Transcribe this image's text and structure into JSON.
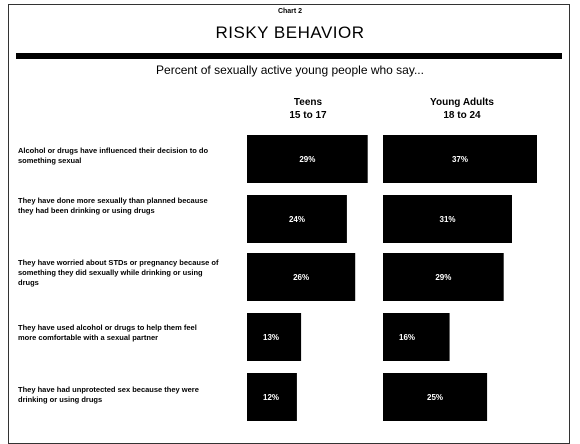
{
  "header": {
    "chart_number": "Chart 2",
    "title": "RISKY BEHAVIOR",
    "subtitle": "Percent of sexually active young people who say..."
  },
  "chart_data": {
    "type": "bar",
    "title": "RISKY BEHAVIOR",
    "subtitle": "Percent of sexually active young people who say...",
    "categories": [
      "Alcohol or drugs have influenced their decision to do something sexual",
      "They have done more sexually than planned because they had been drinking or using drugs",
      "They have worried about STDs or pregnancy because of something they did sexually while drinking or using drugs",
      "They have used alcohol or drugs to help them feel more comfortable with a sexual partner",
      "They have had unprotected sex because they were drinking or using drugs"
    ],
    "series": [
      {
        "name": "Teens 15 to 17",
        "line1": "Teens",
        "line2": "15 to 17",
        "values": [
          29,
          24,
          26,
          13,
          12
        ],
        "labels": [
          "29%",
          "24%",
          "26%",
          "13%",
          "12%"
        ]
      },
      {
        "name": "Young Adults 18 to 24",
        "line1": "Young Adults",
        "line2": "18 to 24",
        "values": [
          37,
          31,
          29,
          16,
          25
        ],
        "labels": [
          "37%",
          "31%",
          "29%",
          "16%",
          "25%"
        ]
      }
    ],
    "value_axis": "none",
    "bar_color": "#000000",
    "label_color": "#ffffff"
  }
}
